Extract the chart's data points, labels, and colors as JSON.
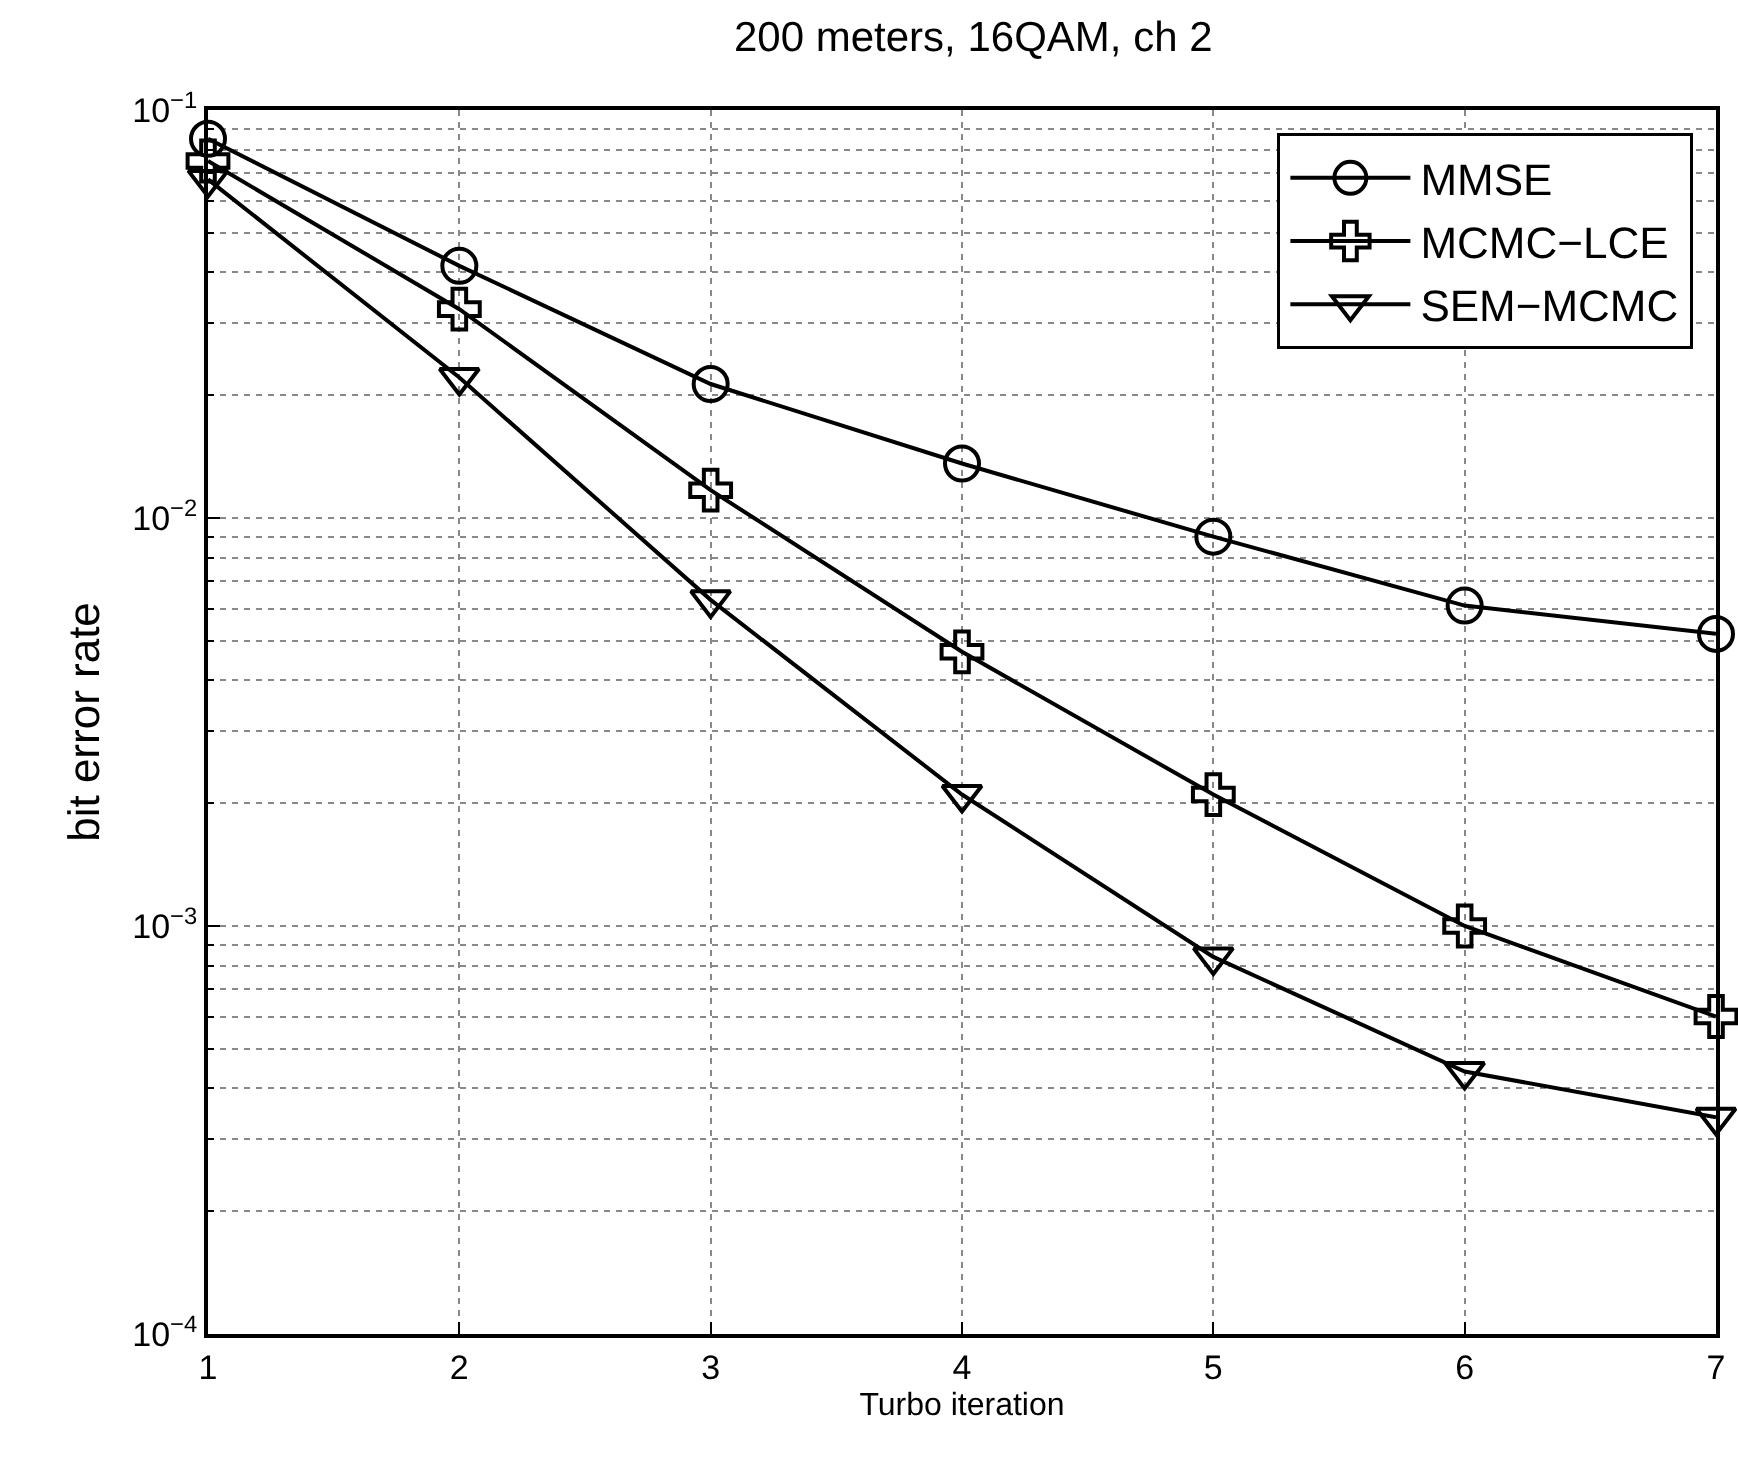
{
  "chart_data": {
    "type": "line",
    "title": "200 meters, 16QAM, ch 2",
    "xlabel": "Turbo iteration",
    "ylabel": "bit error rate",
    "x": [
      1,
      2,
      3,
      4,
      5,
      6,
      7
    ],
    "series": [
      {
        "name": "MMSE",
        "color": "#000000",
        "marker": "circle",
        "values": [
          0.085,
          0.0415,
          0.0213,
          0.0136,
          0.009,
          0.0061,
          0.0052
        ]
      },
      {
        "name": "MCMC−LCE",
        "color": "#000000",
        "marker": "cross",
        "values": [
          0.075,
          0.0325,
          0.0117,
          0.0047,
          0.0021,
          0.001,
          0.0006
        ]
      },
      {
        "name": "SEM−MCMC",
        "color": "#000000",
        "marker": "triangle",
        "values": [
          0.0676,
          0.0221,
          0.0063,
          0.0021,
          0.00084,
          0.00044,
          0.00034
        ]
      }
    ],
    "xlim": [
      1,
      7
    ],
    "xticks": [
      1,
      2,
      3,
      4,
      5,
      6,
      7
    ],
    "ylim": [
      0.0001,
      0.1
    ],
    "log": "y",
    "yticks": [
      {
        "value": 0.0001,
        "label": "10$^{−4}$"
      },
      {
        "value": 0.001,
        "label": "10$^{−3}$"
      },
      {
        "value": 0.01,
        "label": "10$^{−2}$"
      },
      {
        "value": 0.1,
        "label": "10$^{−1}$"
      }
    ],
    "grid": true,
    "legend": "top right",
    "line_style": "solid"
  }
}
